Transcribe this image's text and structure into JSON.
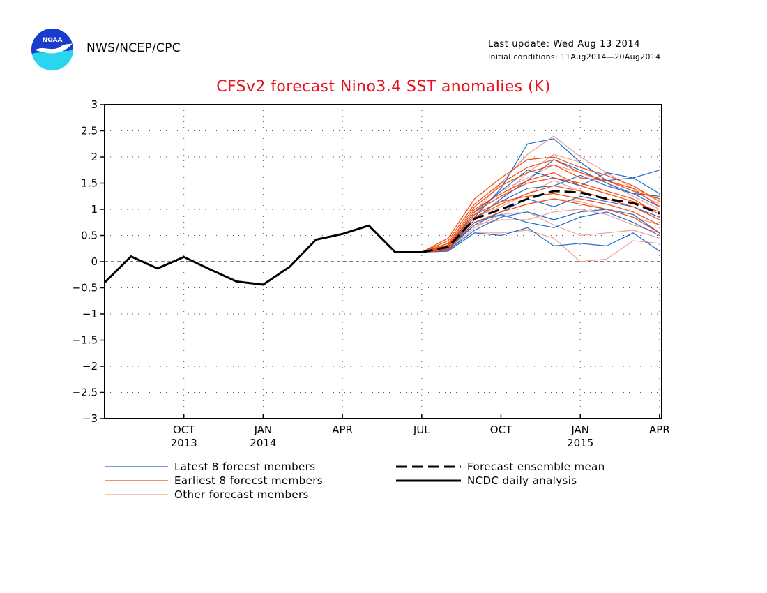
{
  "header": {
    "org": "NWS/NCEP/CPC",
    "last_update": "Last update: Wed Aug 13 2014",
    "initial_conditions": "Initial conditions: 11Aug2014—20Aug2014"
  },
  "logo": {
    "text": "NOAA",
    "colors": {
      "top": "#1a3ccc",
      "bottom": "#2ad6ee",
      "bird": "#ffffff"
    }
  },
  "chart_data": {
    "type": "line",
    "title": "CFSv2 forecast Nino3.4 SST anomalies (K)",
    "xlabel": "",
    "ylabel": "",
    "ylim": [
      -3,
      3
    ],
    "yticks": [
      3,
      2.5,
      2,
      1.5,
      1,
      0.5,
      0,
      -0.5,
      -1,
      -1.5,
      -2,
      -2.5,
      -3
    ],
    "ytick_labels": [
      "3",
      "2.5",
      "2",
      "1.5",
      "1",
      "0.5",
      "0",
      "−0.5",
      "−1",
      "−1.5",
      "−2",
      "−2.5",
      "−3"
    ],
    "x_months": [
      "2013-07",
      "2013-08",
      "2013-09",
      "2013-10",
      "2013-11",
      "2013-12",
      "2014-01",
      "2014-02",
      "2014-03",
      "2014-04",
      "2014-05",
      "2014-06",
      "2014-07",
      "2014-08",
      "2014-09",
      "2014-10",
      "2014-11",
      "2014-12",
      "2015-01",
      "2015-02",
      "2015-03",
      "2015-04"
    ],
    "xticks": [
      {
        "month": "2013-10",
        "label": "OCT",
        "year": "2013"
      },
      {
        "month": "2014-01",
        "label": "JAN",
        "year": "2014"
      },
      {
        "month": "2014-04",
        "label": "APR",
        "year": ""
      },
      {
        "month": "2014-07",
        "label": "JUL",
        "year": ""
      },
      {
        "month": "2014-10",
        "label": "OCT",
        "year": ""
      },
      {
        "month": "2015-01",
        "label": "JAN",
        "year": "2015"
      },
      {
        "month": "2015-04",
        "label": "APR",
        "year": ""
      }
    ],
    "grid": true,
    "zero_line": true,
    "series": [
      {
        "name": "NCDC daily analysis",
        "style": "solid-thick",
        "color": "#000000",
        "x": [
          "2013-07",
          "2013-08",
          "2013-09",
          "2013-10",
          "2013-11",
          "2013-12",
          "2014-01",
          "2014-02",
          "2014-03",
          "2014-04",
          "2014-05",
          "2014-06",
          "2014-07"
        ],
        "values": [
          -0.4,
          0.1,
          -0.13,
          0.09,
          -0.15,
          -0.38,
          -0.44,
          -0.1,
          0.42,
          0.53,
          0.69,
          0.18,
          0.18
        ]
      },
      {
        "name": "Forecast ensemble mean",
        "style": "dashed-thick",
        "color": "#000000",
        "x": [
          "2014-07",
          "2014-08",
          "2014-09",
          "2014-10",
          "2014-11",
          "2014-12",
          "2015-01",
          "2015-02",
          "2015-03",
          "2015-04"
        ],
        "values": [
          0.18,
          0.28,
          0.82,
          1.0,
          1.2,
          1.35,
          1.32,
          1.2,
          1.12,
          0.92
        ]
      },
      {
        "name": "Latest 8 forecst members",
        "style": "thin",
        "color": "#1f6ad0",
        "x": [
          "2014-07",
          "2014-08",
          "2014-09",
          "2014-10",
          "2014-11",
          "2014-12",
          "2015-01",
          "2015-02",
          "2015-03",
          "2015-04"
        ],
        "members": [
          [
            0.18,
            0.3,
            0.85,
            1.4,
            2.25,
            2.35,
            1.9,
            1.55,
            1.6,
            1.75
          ],
          [
            0.18,
            0.2,
            0.55,
            0.5,
            0.65,
            0.3,
            0.35,
            0.3,
            0.55,
            0.2
          ],
          [
            0.18,
            0.25,
            0.8,
            1.2,
            1.55,
            1.95,
            1.75,
            1.5,
            1.3,
            1.25
          ],
          [
            0.18,
            0.22,
            0.6,
            0.85,
            0.95,
            0.8,
            0.95,
            1.0,
            0.9,
            0.55
          ],
          [
            0.18,
            0.28,
            0.95,
            1.35,
            1.75,
            1.6,
            1.45,
            1.7,
            1.6,
            1.3
          ],
          [
            0.18,
            0.24,
            0.7,
            0.95,
            1.2,
            1.05,
            1.25,
            1.15,
            1.05,
            0.85
          ],
          [
            0.18,
            0.26,
            0.75,
            0.9,
            0.75,
            0.65,
            0.85,
            0.95,
            0.75,
            0.5
          ],
          [
            0.18,
            0.3,
            0.9,
            1.15,
            1.4,
            1.45,
            1.65,
            1.45,
            1.3,
            1.05
          ]
        ]
      },
      {
        "name": "Earliest 8 forecst members",
        "style": "thin",
        "color": "#f04a10",
        "x": [
          "2014-07",
          "2014-08",
          "2014-09",
          "2014-10",
          "2014-11",
          "2014-12",
          "2015-01",
          "2015-02",
          "2015-03",
          "2015-04"
        ],
        "members": [
          [
            0.18,
            0.45,
            1.2,
            1.6,
            1.95,
            2.0,
            1.8,
            1.65,
            1.45,
            1.15
          ],
          [
            0.18,
            0.35,
            1.05,
            1.45,
            1.7,
            1.85,
            1.6,
            1.55,
            1.4,
            1.05
          ],
          [
            0.18,
            0.3,
            0.95,
            1.25,
            1.5,
            1.6,
            1.5,
            1.35,
            1.2,
            0.9
          ],
          [
            0.18,
            0.25,
            0.85,
            1.1,
            1.3,
            1.45,
            1.35,
            1.2,
            1.05,
            0.8
          ],
          [
            0.18,
            0.28,
            0.9,
            1.15,
            1.25,
            1.3,
            1.2,
            1.1,
            0.95,
            0.7
          ],
          [
            0.18,
            0.22,
            0.75,
            0.95,
            1.1,
            1.2,
            1.1,
            1.0,
            0.85,
            0.55
          ],
          [
            0.18,
            0.4,
            1.1,
            1.5,
            1.8,
            1.95,
            1.7,
            1.55,
            1.35,
            1.2
          ],
          [
            0.18,
            0.32,
            1.0,
            1.3,
            1.55,
            1.7,
            1.45,
            1.3,
            1.15,
            0.95
          ]
        ]
      },
      {
        "name": "Other forecast members",
        "style": "thin",
        "color": "#f0a090",
        "x": [
          "2014-07",
          "2014-08",
          "2014-09",
          "2014-10",
          "2014-11",
          "2014-12",
          "2015-01",
          "2015-02",
          "2015-03",
          "2015-04"
        ],
        "members": [
          [
            0.18,
            0.3,
            0.95,
            1.5,
            2.05,
            2.4,
            2.0,
            1.7,
            1.4,
            1.2
          ],
          [
            0.18,
            0.2,
            0.55,
            0.55,
            0.6,
            0.45,
            0.0,
            0.05,
            0.4,
            0.35
          ],
          [
            0.18,
            0.25,
            0.8,
            1.2,
            1.7,
            2.05,
            1.9,
            1.55,
            1.35,
            1.1
          ],
          [
            0.18,
            0.22,
            0.65,
            0.9,
            0.95,
            0.7,
            0.5,
            0.55,
            0.6,
            0.45
          ],
          [
            0.18,
            0.28,
            0.85,
            1.05,
            1.3,
            1.55,
            1.35,
            1.2,
            1.05,
            0.8
          ],
          [
            0.18,
            0.26,
            0.7,
            0.8,
            0.8,
            0.95,
            1.0,
            0.9,
            0.7,
            0.55
          ],
          [
            0.18,
            0.3,
            0.9,
            1.35,
            1.6,
            1.85,
            1.7,
            1.5,
            1.25,
            1.0
          ],
          [
            0.18,
            0.24,
            0.75,
            0.95,
            1.1,
            1.2,
            1.15,
            1.0,
            0.85,
            0.7
          ]
        ]
      }
    ],
    "legend": {
      "position": "below",
      "entries": [
        {
          "label": "Latest 8 forecst members",
          "color": "#1f6ad0",
          "style": "thin"
        },
        {
          "label": "Earliest 8 forecst members",
          "color": "#f04a10",
          "style": "thin"
        },
        {
          "label": "Other forecast members",
          "color": "#f0a090",
          "style": "thin"
        },
        {
          "label": "Forecast ensemble mean",
          "color": "#000000",
          "style": "dashed-thick"
        },
        {
          "label": "NCDC daily analysis",
          "color": "#000000",
          "style": "solid-thick"
        }
      ]
    }
  }
}
